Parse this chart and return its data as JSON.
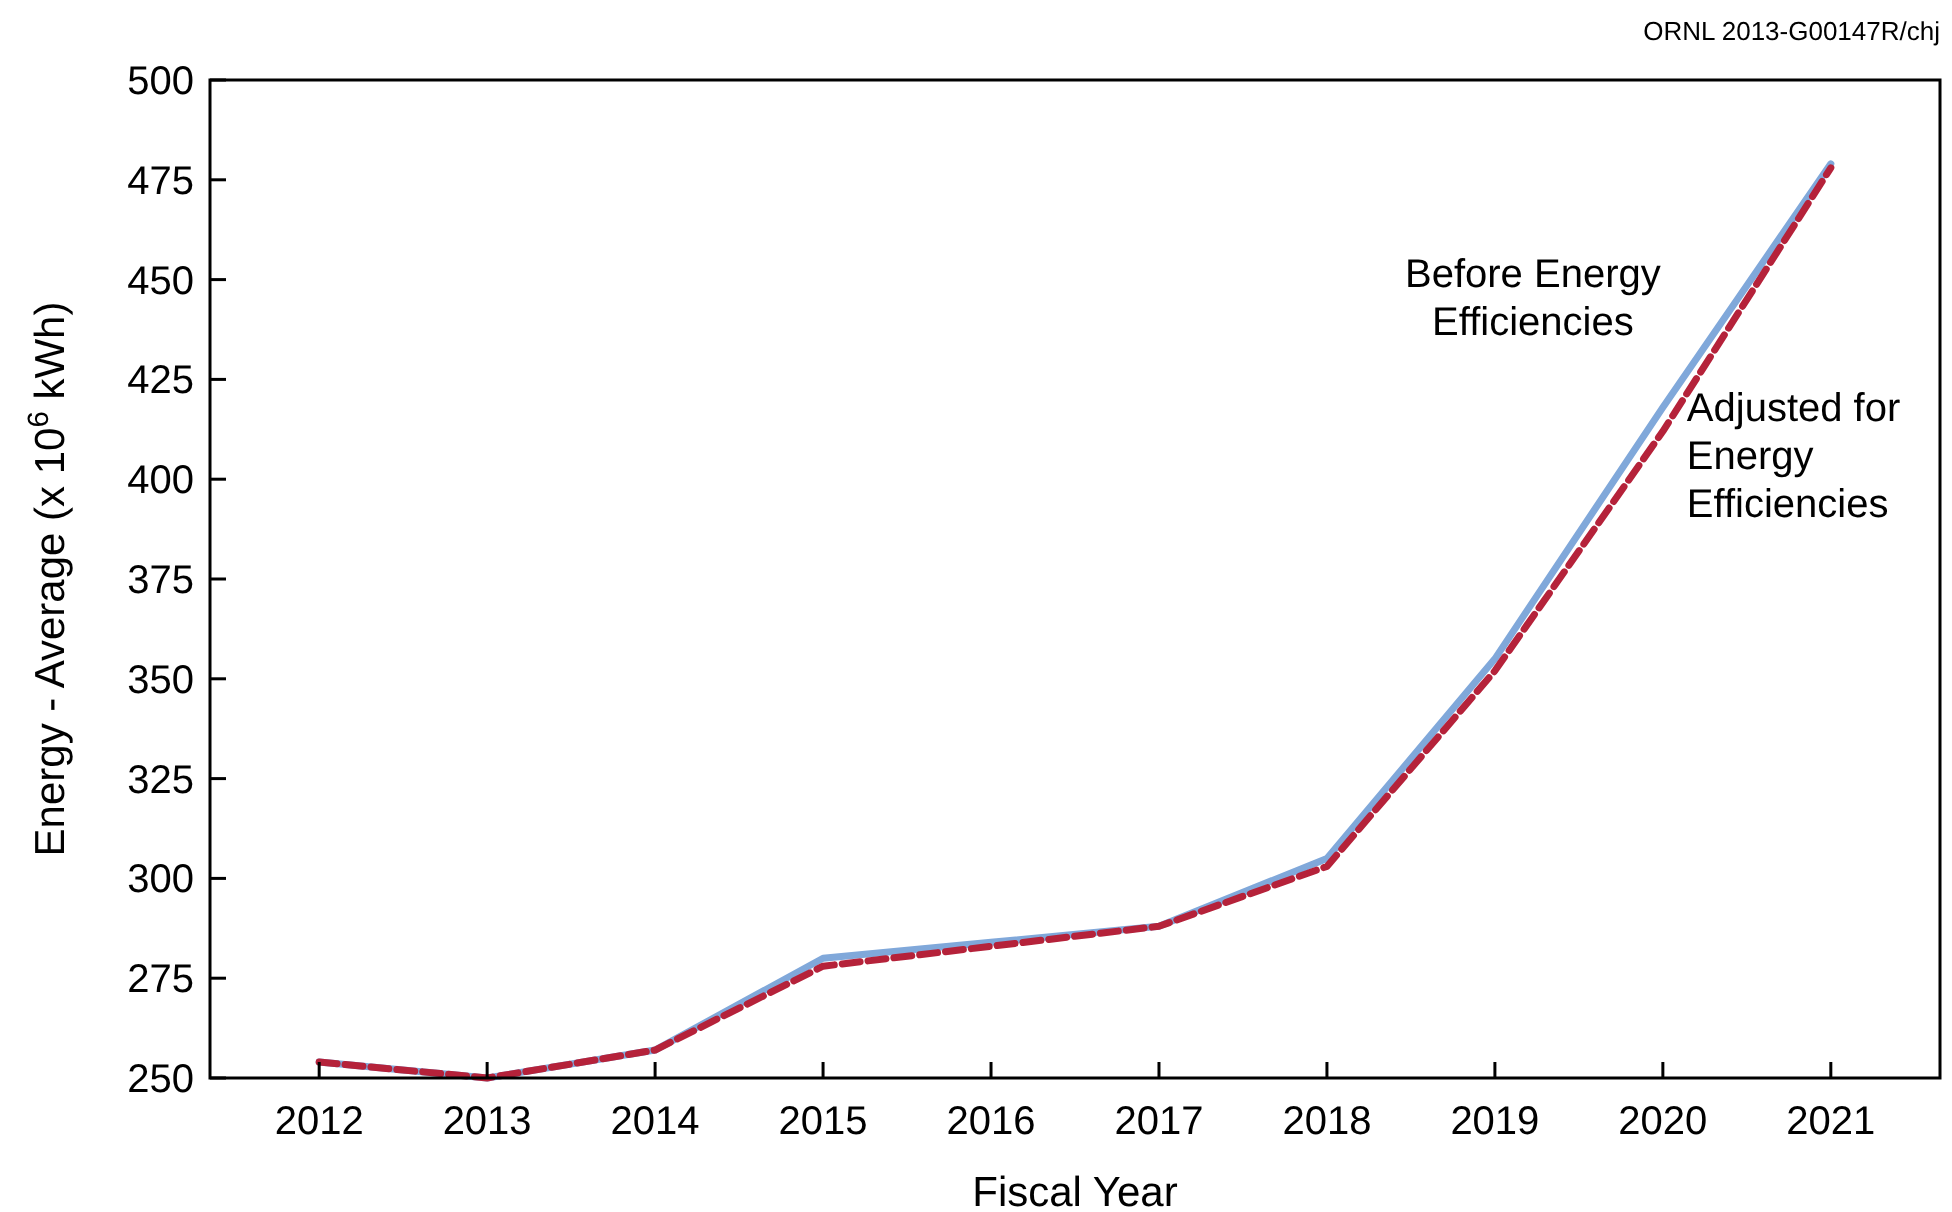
{
  "chart_data": {
    "type": "line",
    "xlabel": "Fiscal Year",
    "ylabel": "Energy - Average (x 10$^{6}$ kWh)",
    "annotations": [
      "ORNL 2013-G00147R/chj"
    ],
    "categories": [
      "2012",
      "2013",
      "2014",
      "2015",
      "2016",
      "2017",
      "2018",
      "2019",
      "2020",
      "2021"
    ],
    "series": [
      {
        "name": "Before Energy Efficiencies",
        "color": "#80a8da",
        "line_style": "solid",
        "values": [
          254,
          250,
          257,
          280,
          284,
          288,
          305,
          355,
          418,
          479
        ]
      },
      {
        "name": "Adjusted for Energy Efficiencies",
        "color": "#b5223a",
        "line_style": "dashed",
        "values": [
          254,
          250,
          257,
          278,
          283,
          288,
          303,
          352,
          412,
          478
        ]
      }
    ],
    "ylim": [
      250,
      500
    ],
    "yticks": [
      250,
      275,
      300,
      325,
      350,
      375,
      400,
      425,
      450,
      475,
      500
    ],
    "grid": false,
    "marker": "none"
  }
}
